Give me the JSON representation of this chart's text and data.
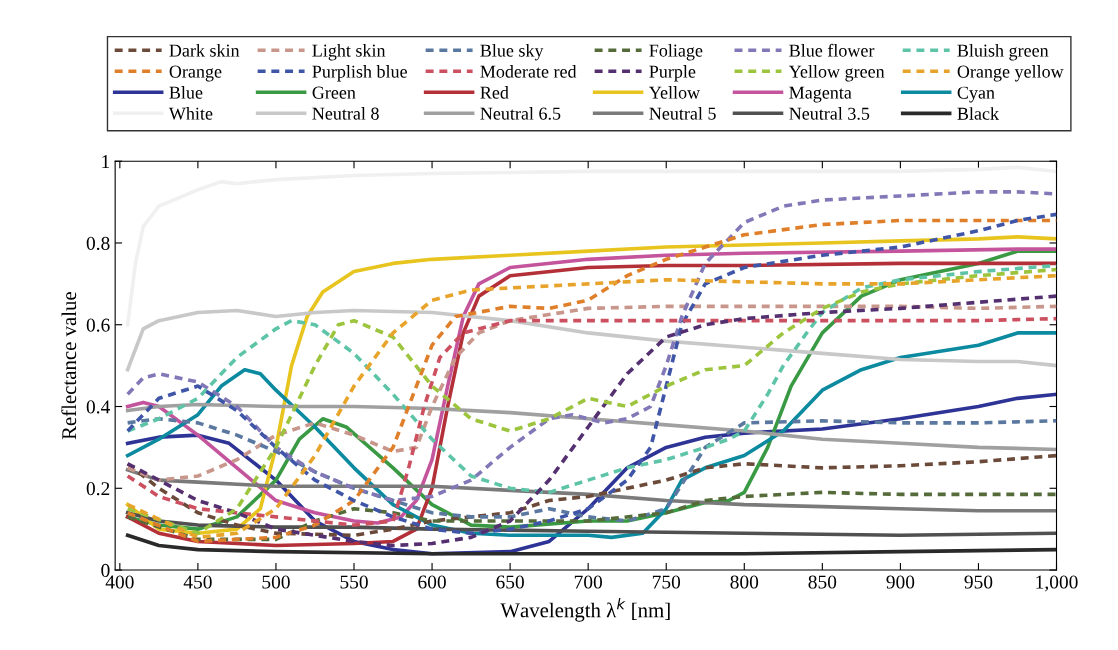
{
  "chart_data": {
    "type": "line",
    "xlabel": "Wavelength λ$^{k}$ [nm]",
    "ylabel": "Reflectance value",
    "xlim": [
      397,
      1000
    ],
    "ylim": [
      0,
      1
    ],
    "xticks": [
      400,
      450,
      500,
      550,
      600,
      650,
      700,
      750,
      800,
      850,
      900,
      950,
      {
        "value": 1000,
        "label": "1,000"
      }
    ],
    "yticks": [
      0,
      0.2,
      0.4,
      0.6,
      0.8,
      1
    ],
    "grid": false,
    "legend": "top",
    "marker": "none",
    "series": [
      {
        "name": "Dark skin",
        "color": "#6b4a3a",
        "line_style": "dashed",
        "x": [
          405,
          425,
          450,
          475,
          500,
          550,
          575,
          600,
          625,
          650,
          675,
          700,
          725,
          750,
          775,
          800,
          850,
          900,
          950,
          1000
        ],
        "values": [
          0.26,
          0.2,
          0.14,
          0.11,
          0.09,
          0.085,
          0.1,
          0.12,
          0.13,
          0.14,
          0.17,
          0.18,
          0.2,
          0.22,
          0.25,
          0.26,
          0.25,
          0.255,
          0.265,
          0.28
        ]
      },
      {
        "name": "Light skin",
        "color": "#c8968a",
        "line_style": "dashed",
        "x": [
          405,
          425,
          450,
          475,
          500,
          525,
          550,
          575,
          590,
          600,
          615,
          630,
          650,
          700,
          750,
          800,
          850,
          900,
          950,
          1000
        ],
        "values": [
          0.25,
          0.22,
          0.23,
          0.27,
          0.33,
          0.36,
          0.33,
          0.29,
          0.3,
          0.4,
          0.52,
          0.58,
          0.61,
          0.64,
          0.645,
          0.645,
          0.645,
          0.645,
          0.64,
          0.645
        ]
      },
      {
        "name": "Blue sky",
        "color": "#5a78a0",
        "line_style": "dashed",
        "x": [
          405,
          425,
          450,
          475,
          500,
          525,
          550,
          575,
          600,
          625,
          650,
          675,
          700,
          725,
          750,
          775,
          800,
          850,
          900,
          950,
          1000
        ],
        "values": [
          0.36,
          0.37,
          0.36,
          0.33,
          0.29,
          0.24,
          0.2,
          0.17,
          0.14,
          0.13,
          0.13,
          0.15,
          0.13,
          0.12,
          0.15,
          0.3,
          0.36,
          0.365,
          0.36,
          0.36,
          0.365
        ]
      },
      {
        "name": "Foliage",
        "color": "#556b3a",
        "line_style": "dashed",
        "x": [
          405,
          450,
          500,
          525,
          550,
          575,
          600,
          625,
          650,
          700,
          750,
          775,
          800,
          850,
          900,
          950,
          1000
        ],
        "values": [
          0.13,
          0.075,
          0.075,
          0.12,
          0.15,
          0.14,
          0.12,
          0.12,
          0.12,
          0.12,
          0.14,
          0.17,
          0.18,
          0.19,
          0.185,
          0.185,
          0.185
        ]
      },
      {
        "name": "Blue flower",
        "color": "#8278b8",
        "line_style": "dashed",
        "x": [
          405,
          415,
          425,
          450,
          475,
          500,
          525,
          550,
          575,
          600,
          625,
          650,
          675,
          690,
          710,
          725,
          740,
          750,
          760,
          775,
          800,
          825,
          850,
          900,
          950,
          975,
          1000
        ],
        "values": [
          0.43,
          0.47,
          0.48,
          0.46,
          0.4,
          0.3,
          0.24,
          0.2,
          0.17,
          0.18,
          0.22,
          0.3,
          0.37,
          0.38,
          0.36,
          0.37,
          0.4,
          0.5,
          0.62,
          0.75,
          0.85,
          0.89,
          0.905,
          0.915,
          0.925,
          0.925,
          0.92
        ]
      },
      {
        "name": "Bluish green",
        "color": "#5ec4a8",
        "line_style": "dashed",
        "x": [
          405,
          425,
          450,
          475,
          500,
          510,
          525,
          550,
          575,
          600,
          625,
          650,
          675,
          700,
          725,
          750,
          775,
          790,
          800,
          815,
          825,
          840,
          850,
          875,
          900,
          950,
          1000
        ],
        "values": [
          0.34,
          0.37,
          0.42,
          0.52,
          0.59,
          0.61,
          0.6,
          0.53,
          0.43,
          0.32,
          0.23,
          0.2,
          0.19,
          0.22,
          0.25,
          0.27,
          0.3,
          0.32,
          0.34,
          0.43,
          0.5,
          0.58,
          0.63,
          0.69,
          0.71,
          0.73,
          0.745
        ]
      },
      {
        "name": "Orange",
        "color": "#e07f2a",
        "line_style": "dashed",
        "x": [
          405,
          450,
          500,
          525,
          550,
          575,
          590,
          600,
          615,
          650,
          675,
          700,
          725,
          750,
          775,
          800,
          850,
          900,
          950,
          1000
        ],
        "values": [
          0.14,
          0.07,
          0.08,
          0.11,
          0.17,
          0.3,
          0.45,
          0.55,
          0.62,
          0.645,
          0.64,
          0.66,
          0.72,
          0.76,
          0.79,
          0.82,
          0.845,
          0.855,
          0.855,
          0.855
        ]
      },
      {
        "name": "Purplish blue",
        "color": "#3f55a8",
        "line_style": "dashed",
        "x": [
          405,
          425,
          450,
          475,
          500,
          525,
          550,
          575,
          600,
          625,
          650,
          675,
          700,
          725,
          740,
          750,
          760,
          775,
          800,
          850,
          900,
          950,
          975,
          1000
        ],
        "values": [
          0.34,
          0.42,
          0.45,
          0.39,
          0.3,
          0.22,
          0.17,
          0.13,
          0.1,
          0.09,
          0.1,
          0.12,
          0.15,
          0.22,
          0.3,
          0.45,
          0.6,
          0.7,
          0.74,
          0.77,
          0.79,
          0.83,
          0.855,
          0.87
        ]
      },
      {
        "name": "Moderate red",
        "color": "#cc5060",
        "line_style": "dashed",
        "x": [
          405,
          425,
          450,
          500,
          550,
          575,
          585,
          595,
          605,
          620,
          650,
          700,
          750,
          800,
          850,
          900,
          950,
          1000
        ],
        "values": [
          0.23,
          0.18,
          0.15,
          0.13,
          0.11,
          0.12,
          0.25,
          0.4,
          0.52,
          0.58,
          0.61,
          0.61,
          0.61,
          0.61,
          0.61,
          0.61,
          0.61,
          0.615
        ]
      },
      {
        "name": "Purple",
        "color": "#553070",
        "line_style": "dashed",
        "x": [
          405,
          425,
          450,
          475,
          500,
          550,
          575,
          600,
          625,
          650,
          675,
          700,
          725,
          750,
          775,
          800,
          850,
          900,
          950,
          1000
        ],
        "values": [
          0.26,
          0.22,
          0.17,
          0.14,
          0.1,
          0.07,
          0.06,
          0.065,
          0.08,
          0.12,
          0.22,
          0.35,
          0.48,
          0.57,
          0.6,
          0.615,
          0.63,
          0.64,
          0.655,
          0.67
        ]
      },
      {
        "name": "Yellow green",
        "color": "#9cc43c",
        "line_style": "dashed",
        "x": [
          405,
          450,
          475,
          500,
          525,
          540,
          550,
          575,
          600,
          625,
          650,
          675,
          700,
          725,
          750,
          775,
          800,
          825,
          850,
          875,
          900,
          950,
          1000
        ],
        "values": [
          0.15,
          0.09,
          0.15,
          0.3,
          0.5,
          0.6,
          0.61,
          0.57,
          0.45,
          0.37,
          0.34,
          0.37,
          0.42,
          0.4,
          0.45,
          0.49,
          0.5,
          0.58,
          0.64,
          0.68,
          0.7,
          0.72,
          0.735
        ]
      },
      {
        "name": "Orange yellow",
        "color": "#e8a42a",
        "line_style": "dashed",
        "x": [
          405,
          450,
          475,
          500,
          525,
          550,
          575,
          600,
          625,
          650,
          700,
          750,
          800,
          850,
          900,
          950,
          1000
        ],
        "values": [
          0.16,
          0.08,
          0.09,
          0.15,
          0.28,
          0.45,
          0.58,
          0.66,
          0.685,
          0.69,
          0.7,
          0.71,
          0.705,
          0.7,
          0.7,
          0.71,
          0.72
        ]
      },
      {
        "name": "Blue",
        "color": "#2e3396",
        "line_style": "solid",
        "x": [
          405,
          425,
          450,
          470,
          500,
          525,
          550,
          575,
          600,
          650,
          675,
          700,
          725,
          750,
          775,
          800,
          850,
          900,
          950,
          975,
          1000
        ],
        "values": [
          0.31,
          0.325,
          0.33,
          0.31,
          0.22,
          0.12,
          0.07,
          0.05,
          0.04,
          0.045,
          0.07,
          0.15,
          0.25,
          0.3,
          0.325,
          0.335,
          0.345,
          0.37,
          0.4,
          0.42,
          0.43
        ]
      },
      {
        "name": "Green",
        "color": "#3a9a44",
        "line_style": "solid",
        "x": [
          405,
          425,
          450,
          475,
          500,
          515,
          530,
          545,
          575,
          600,
          625,
          650,
          700,
          725,
          750,
          775,
          790,
          800,
          815,
          830,
          850,
          875,
          900,
          950,
          975,
          1000
        ],
        "values": [
          0.13,
          0.11,
          0.1,
          0.13,
          0.22,
          0.32,
          0.37,
          0.35,
          0.25,
          0.16,
          0.11,
          0.105,
          0.12,
          0.12,
          0.14,
          0.165,
          0.17,
          0.19,
          0.3,
          0.45,
          0.58,
          0.67,
          0.71,
          0.75,
          0.78,
          0.78
        ]
      },
      {
        "name": "Red",
        "color": "#b43038",
        "line_style": "solid",
        "x": [
          405,
          425,
          450,
          500,
          550,
          575,
          590,
          600,
          610,
          620,
          630,
          650,
          700,
          750,
          800,
          900,
          1000
        ],
        "values": [
          0.13,
          0.09,
          0.07,
          0.06,
          0.065,
          0.07,
          0.1,
          0.2,
          0.4,
          0.58,
          0.67,
          0.72,
          0.74,
          0.745,
          0.745,
          0.75,
          0.75
        ]
      },
      {
        "name": "Yellow",
        "color": "#e8c41e",
        "line_style": "solid",
        "x": [
          405,
          425,
          450,
          475,
          490,
          500,
          510,
          520,
          530,
          550,
          575,
          600,
          650,
          700,
          750,
          800,
          850,
          900,
          950,
          975,
          1000
        ],
        "values": [
          0.16,
          0.1,
          0.09,
          0.1,
          0.15,
          0.3,
          0.5,
          0.62,
          0.68,
          0.73,
          0.75,
          0.76,
          0.77,
          0.78,
          0.79,
          0.795,
          0.8,
          0.805,
          0.81,
          0.815,
          0.81
        ]
      },
      {
        "name": "Magenta",
        "color": "#c4559c",
        "line_style": "solid",
        "x": [
          405,
          415,
          425,
          450,
          475,
          500,
          525,
          550,
          565,
          580,
          590,
          600,
          610,
          620,
          630,
          650,
          700,
          750,
          800,
          900,
          975,
          1000
        ],
        "values": [
          0.4,
          0.41,
          0.4,
          0.33,
          0.25,
          0.17,
          0.14,
          0.12,
          0.115,
          0.13,
          0.17,
          0.27,
          0.45,
          0.62,
          0.7,
          0.74,
          0.76,
          0.77,
          0.775,
          0.78,
          0.785,
          0.785
        ]
      },
      {
        "name": "Cyan",
        "color": "#0c8aa0",
        "line_style": "solid",
        "x": [
          405,
          425,
          450,
          465,
          480,
          490,
          500,
          525,
          550,
          575,
          600,
          625,
          650,
          700,
          715,
          735,
          750,
          760,
          775,
          800,
          825,
          850,
          875,
          900,
          950,
          975,
          1000
        ],
        "values": [
          0.28,
          0.32,
          0.38,
          0.45,
          0.49,
          0.48,
          0.44,
          0.35,
          0.25,
          0.16,
          0.11,
          0.09,
          0.085,
          0.085,
          0.08,
          0.09,
          0.15,
          0.22,
          0.25,
          0.28,
          0.34,
          0.44,
          0.49,
          0.52,
          0.55,
          0.58,
          0.58
        ]
      },
      {
        "name": "White",
        "color": "#f0f0f0",
        "line_style": "solid",
        "x": [
          405,
          410,
          415,
          425,
          450,
          465,
          475,
          500,
          550,
          600,
          700,
          800,
          900,
          950,
          975,
          1000
        ],
        "values": [
          0.6,
          0.75,
          0.84,
          0.89,
          0.93,
          0.95,
          0.945,
          0.955,
          0.965,
          0.97,
          0.975,
          0.975,
          0.975,
          0.98,
          0.985,
          0.975
        ]
      },
      {
        "name": "Neutral 8",
        "color": "#c8c8c8",
        "line_style": "solid",
        "x": [
          405,
          415,
          425,
          450,
          475,
          500,
          525,
          550,
          600,
          650,
          700,
          750,
          800,
          850,
          900,
          950,
          975,
          1000
        ],
        "values": [
          0.49,
          0.59,
          0.61,
          0.63,
          0.635,
          0.62,
          0.63,
          0.635,
          0.63,
          0.61,
          0.58,
          0.56,
          0.545,
          0.53,
          0.515,
          0.51,
          0.51,
          0.5
        ]
      },
      {
        "name": "Neutral 6.5",
        "color": "#a0a0a0",
        "line_style": "solid",
        "x": [
          405,
          425,
          450,
          500,
          550,
          600,
          650,
          700,
          750,
          800,
          850,
          900,
          950,
          1000
        ],
        "values": [
          0.39,
          0.4,
          0.405,
          0.4,
          0.4,
          0.395,
          0.385,
          0.37,
          0.355,
          0.34,
          0.32,
          0.31,
          0.3,
          0.295
        ]
      },
      {
        "name": "Neutral 5",
        "color": "#7a7a7a",
        "line_style": "solid",
        "x": [
          405,
          425,
          450,
          500,
          550,
          600,
          650,
          700,
          750,
          800,
          850,
          900,
          950,
          1000
        ],
        "values": [
          0.245,
          0.22,
          0.215,
          0.205,
          0.205,
          0.205,
          0.195,
          0.185,
          0.17,
          0.16,
          0.155,
          0.15,
          0.145,
          0.145
        ]
      },
      {
        "name": "Neutral 3.5",
        "color": "#505050",
        "line_style": "solid",
        "x": [
          405,
          425,
          450,
          500,
          550,
          600,
          700,
          800,
          900,
          1000
        ],
        "values": [
          0.14,
          0.12,
          0.11,
          0.105,
          0.105,
          0.1,
          0.095,
          0.09,
          0.085,
          0.09
        ]
      },
      {
        "name": "Black",
        "color": "#2a2a2a",
        "line_style": "solid",
        "x": [
          405,
          425,
          450,
          500,
          600,
          700,
          800,
          900,
          1000
        ],
        "values": [
          0.085,
          0.06,
          0.05,
          0.045,
          0.04,
          0.04,
          0.04,
          0.045,
          0.05
        ]
      }
    ]
  }
}
